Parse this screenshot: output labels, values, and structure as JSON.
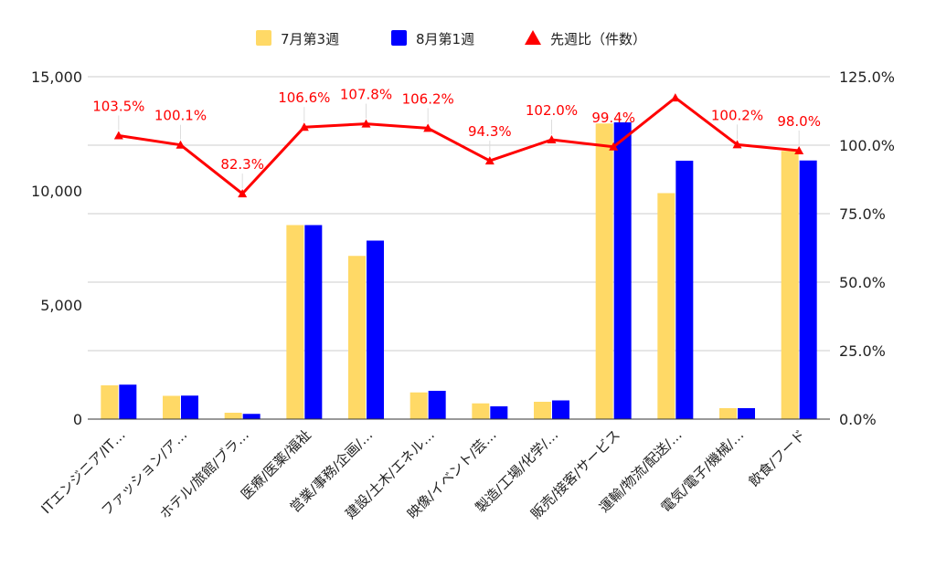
{
  "chart_data": {
    "type": "bar",
    "categories": [
      "ITエンジニア/IT…",
      "ファッション/ア…",
      "ホテル/旅館/ブラ…",
      "医療/医薬/福祉",
      "営業/事務/企画/…",
      "建設/土木/エネル…",
      "映像/イベント/芸…",
      "製造/工場/化学/…",
      "販売/接客/サービス",
      "運輸/物流/配送/…",
      "電気/電子/機械/…",
      "飲食/フード"
    ],
    "series": [
      {
        "name": "7月第3週",
        "type": "bar",
        "axis": "left",
        "color": "#FFD966",
        "values": [
          1480,
          1020,
          280,
          8500,
          7150,
          1170,
          690,
          760,
          12950,
          9900,
          480,
          11750
        ]
      },
      {
        "name": "8月第1週",
        "type": "bar",
        "axis": "left",
        "color": "#0000FF",
        "values": [
          1510,
          1030,
          230,
          8500,
          7820,
          1240,
          560,
          820,
          13000,
          11320,
          480,
          11330
        ]
      },
      {
        "name": "先週比（件数）",
        "type": "line",
        "axis": "right",
        "color": "#FF0000",
        "values": [
          103.5,
          100.1,
          82.3,
          106.6,
          107.8,
          106.2,
          94.3,
          102.0,
          99.4,
          117.3,
          100.2,
          98.0
        ],
        "labels": [
          "103.5%",
          "100.1%",
          "82.3%",
          "106.6%",
          "107.8%",
          "106.2%",
          "94.3%",
          "102.0%",
          "99.4%",
          "",
          "100.2%",
          "98.0%"
        ]
      }
    ],
    "y_left": {
      "ylim": [
        0,
        15000
      ],
      "ticks": [
        0,
        5000,
        10000,
        15000
      ],
      "tick_labels": [
        "0",
        "5,000",
        "10,000",
        "15,000"
      ]
    },
    "y_right": {
      "ylim": [
        0,
        125
      ],
      "ticks": [
        0,
        25,
        50,
        75,
        100,
        125
      ],
      "tick_labels": [
        "0.0%",
        "25.0%",
        "50.0%",
        "75.0%",
        "100.0%",
        "125.0%"
      ]
    },
    "grid": true,
    "legend": "top-center",
    "title": "",
    "xlabel": "",
    "ylabel": ""
  }
}
